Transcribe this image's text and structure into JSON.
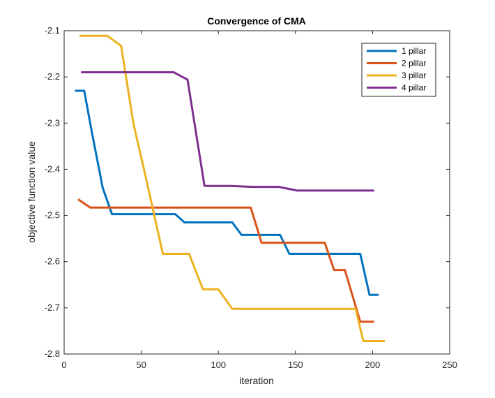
{
  "chart_data": {
    "type": "line",
    "title": "Convergence of CMA",
    "xlabel": "iteration",
    "ylabel": "objective function value",
    "xlim": [
      0,
      250
    ],
    "ylim": [
      -2.8,
      -2.1
    ],
    "xticks": [
      0,
      50,
      100,
      150,
      200,
      250
    ],
    "yticks": [
      -2.8,
      -2.7,
      -2.6,
      -2.5,
      -2.4,
      -2.3,
      -2.2,
      -2.1
    ],
    "xtick_labels": [
      "0",
      "50",
      "100",
      "150",
      "200",
      "250"
    ],
    "ytick_labels": [
      "-2.8",
      "-2.7",
      "-2.6",
      "-2.5",
      "-2.4",
      "-2.3",
      "-2.2",
      "-2.1"
    ],
    "grid": false,
    "legend_position": "top-right",
    "series": [
      {
        "name": "1 pillar",
        "color": "#0072BD",
        "x": [
          7,
          13,
          18,
          25,
          31,
          72,
          78,
          109,
          115,
          140,
          146,
          192,
          198,
          204
        ],
        "y": [
          -2.23,
          -2.23,
          -2.32,
          -2.44,
          -2.497,
          -2.497,
          -2.515,
          -2.515,
          -2.542,
          -2.542,
          -2.583,
          -2.583,
          -2.672,
          -2.672
        ]
      },
      {
        "name": "2 pillar",
        "color": "#D95319",
        "x": [
          9,
          17,
          121,
          128,
          169,
          175,
          182,
          192,
          201
        ],
        "y": [
          -2.465,
          -2.483,
          -2.483,
          -2.559,
          -2.559,
          -2.618,
          -2.618,
          -2.73,
          -2.73
        ]
      },
      {
        "name": "3 pillar",
        "color": "#EDB120",
        "x": [
          10,
          28,
          37,
          45,
          53,
          64,
          81,
          90,
          100,
          109,
          189,
          194,
          208
        ],
        "y": [
          -2.111,
          -2.111,
          -2.133,
          -2.302,
          -2.418,
          -2.583,
          -2.583,
          -2.66,
          -2.66,
          -2.702,
          -2.702,
          -2.772,
          -2.772
        ]
      },
      {
        "name": "4 pillar",
        "color": "#7E2F8E",
        "x": [
          11,
          71,
          80,
          91,
          108,
          122,
          139,
          151,
          201
        ],
        "y": [
          -2.19,
          -2.19,
          -2.206,
          -2.436,
          -2.436,
          -2.438,
          -2.438,
          -2.446,
          -2.446
        ]
      }
    ]
  }
}
